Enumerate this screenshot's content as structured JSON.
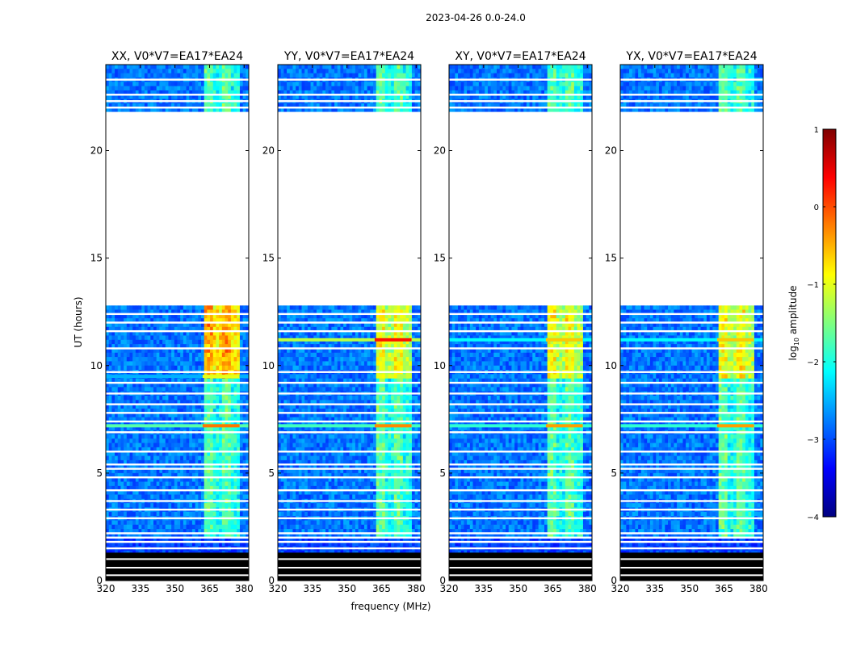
{
  "figure": {
    "suptitle": "2023-04-26 0.0-24.0",
    "xlabel": "frequency (MHz)",
    "ylabel": "UT (hours)"
  },
  "colorbar": {
    "label_prefix": "log",
    "label_sub": "10",
    "label_suffix": " amplitude",
    "range": [
      -4,
      1
    ],
    "ticks": [
      "1",
      "0",
      "−1",
      "−2",
      "−3",
      "−4"
    ],
    "tick_values": [
      1,
      0,
      -1,
      -2,
      -3,
      -4
    ],
    "colors": [
      "#00007f",
      "#0000ff",
      "#007fff",
      "#00ffff",
      "#7fff7f",
      "#ffff00",
      "#ff7f00",
      "#ff0000",
      "#7f0000"
    ]
  },
  "chart_data": [
    {
      "type": "heatmap",
      "title": "XX, V0*V7=EA17*EA24",
      "xlim": [
        320,
        382
      ],
      "ylim": [
        0,
        24
      ],
      "xticks": [
        320,
        335,
        350,
        365,
        380
      ],
      "xtick_labels": [
        "320",
        "335",
        "350",
        "365",
        "380"
      ],
      "yticks": [
        0,
        5,
        10,
        15,
        20
      ],
      "ytick_labels": [
        "0",
        "5",
        "10",
        "15",
        "20"
      ],
      "data_gaps_ut": [
        [
          12.8,
          21.8
        ]
      ],
      "rfi_band_mhz": [
        362,
        378
      ],
      "hot_rows": [
        {
          "ut": 9.5,
          "level": -1.0
        },
        {
          "ut": 7.2,
          "level": -0.2
        }
      ]
    },
    {
      "type": "heatmap",
      "title": "YY, V0*V7=EA17*EA24",
      "xlim": [
        320,
        382
      ],
      "ylim": [
        0,
        24
      ],
      "xticks": [
        320,
        335,
        350,
        365,
        380
      ],
      "xtick_labels": [
        "320",
        "335",
        "350",
        "365",
        "380"
      ],
      "yticks": [
        0,
        5,
        10,
        15,
        20
      ],
      "ytick_labels": [
        "0",
        "5",
        "10",
        "15",
        "20"
      ],
      "data_gaps_ut": [
        [
          12.8,
          21.8
        ]
      ],
      "rfi_band_mhz": [
        362,
        378
      ],
      "hot_rows": [
        {
          "ut": 11.2,
          "level": 0.3
        },
        {
          "ut": 7.2,
          "level": -0.3
        }
      ]
    },
    {
      "type": "heatmap",
      "title": "XY, V0*V7=EA17*EA24",
      "xlim": [
        320,
        382
      ],
      "ylim": [
        0,
        24
      ],
      "xticks": [
        320,
        335,
        350,
        365,
        380
      ],
      "xtick_labels": [
        "320",
        "335",
        "350",
        "365",
        "380"
      ],
      "yticks": [
        0,
        5,
        10,
        15,
        20
      ],
      "ytick_labels": [
        "0",
        "5",
        "10",
        "15",
        "20"
      ],
      "data_gaps_ut": [
        [
          12.8,
          21.8
        ]
      ],
      "rfi_band_mhz": [
        362,
        378
      ],
      "hot_rows": [
        {
          "ut": 11.2,
          "level": -0.6
        },
        {
          "ut": 7.2,
          "level": -0.4
        }
      ]
    },
    {
      "type": "heatmap",
      "title": "YX, V0*V7=EA17*EA24",
      "xlim": [
        320,
        382
      ],
      "ylim": [
        0,
        24
      ],
      "xticks": [
        320,
        335,
        350,
        365,
        380
      ],
      "xtick_labels": [
        "320",
        "335",
        "350",
        "365",
        "380"
      ],
      "yticks": [
        0,
        5,
        10,
        15,
        20
      ],
      "ytick_labels": [
        "0",
        "5",
        "10",
        "15",
        "20"
      ],
      "data_gaps_ut": [
        [
          12.8,
          21.8
        ]
      ],
      "rfi_band_mhz": [
        362,
        378
      ],
      "hot_rows": [
        {
          "ut": 11.2,
          "level": -0.6
        },
        {
          "ut": 7.2,
          "level": -0.4
        }
      ]
    }
  ]
}
